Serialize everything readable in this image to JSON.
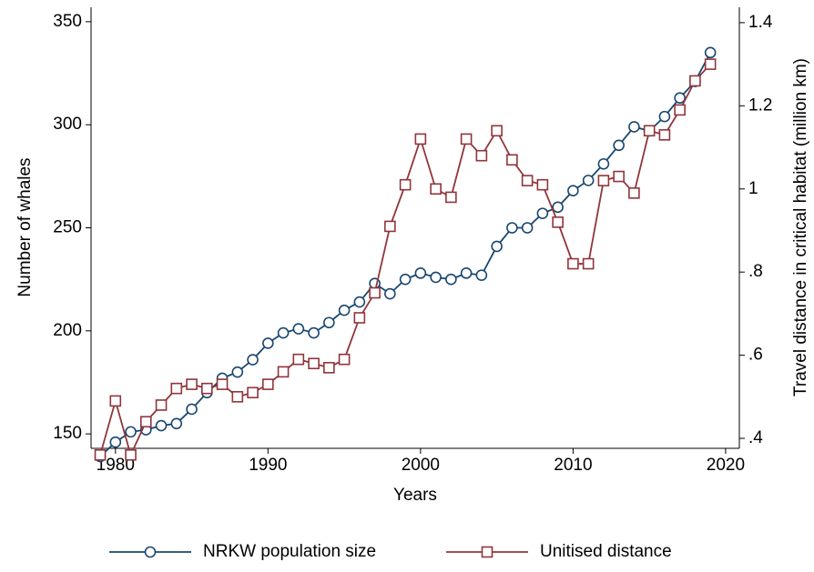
{
  "chart_data": {
    "type": "line",
    "x_label": "Years",
    "y_label": "Number of whales",
    "y2_label": "Travel distance in critical habitat (million km)",
    "x": [
      1979,
      1980,
      1981,
      1982,
      1983,
      1984,
      1985,
      1986,
      1987,
      1988,
      1989,
      1990,
      1991,
      1992,
      1993,
      1994,
      1995,
      1996,
      1997,
      1998,
      1999,
      2000,
      2001,
      2002,
      2003,
      2004,
      2005,
      2006,
      2007,
      2008,
      2009,
      2010,
      2011,
      2012,
      2013,
      2014,
      2015,
      2016,
      2017,
      2018,
      2019
    ],
    "series": [
      {
        "name": "NRKW population size",
        "color": "#1a476f",
        "marker": "circle",
        "values": [
          139,
          146,
          151,
          152,
          154,
          155,
          162,
          170,
          177,
          180,
          186,
          194,
          199,
          201,
          199,
          204,
          210,
          214,
          223,
          218,
          225,
          228,
          226,
          225,
          228,
          227,
          241,
          250,
          250,
          257,
          260,
          268,
          273,
          281,
          290,
          299,
          297,
          304,
          313,
          321,
          335
        ]
      },
      {
        "name": "Unitised distance",
        "color": "#90353b",
        "marker": "square",
        "axis": "y2",
        "values": [
          0.36,
          0.49,
          0.36,
          0.44,
          0.48,
          0.52,
          0.53,
          0.52,
          0.53,
          0.5,
          0.51,
          0.53,
          0.56,
          0.59,
          0.58,
          0.57,
          0.59,
          0.69,
          0.75,
          0.91,
          1.01,
          1.12,
          1.0,
          0.98,
          1.12,
          1.08,
          1.14,
          1.07,
          1.02,
          1.01,
          0.92,
          0.82,
          0.82,
          1.02,
          1.03,
          0.99,
          1.14,
          1.13,
          1.19,
          1.26,
          1.3
        ]
      }
    ],
    "xlim": [
      1978.4,
      2020.9
    ],
    "xticks": [
      1980,
      1990,
      2000,
      2010,
      2020
    ],
    "ylim": [
      143,
      357
    ],
    "yticks": [
      150,
      200,
      250,
      300,
      350
    ],
    "y2lim": [
      0.376,
      1.437
    ],
    "y2ticks": [
      {
        "value": 0.4,
        "label": ".4"
      },
      {
        "value": 0.6,
        "label": ".6"
      },
      {
        "value": 0.8,
        "label": ".8"
      },
      1,
      1.2,
      1.4
    ],
    "grid": false,
    "legend_position": "bottom"
  }
}
